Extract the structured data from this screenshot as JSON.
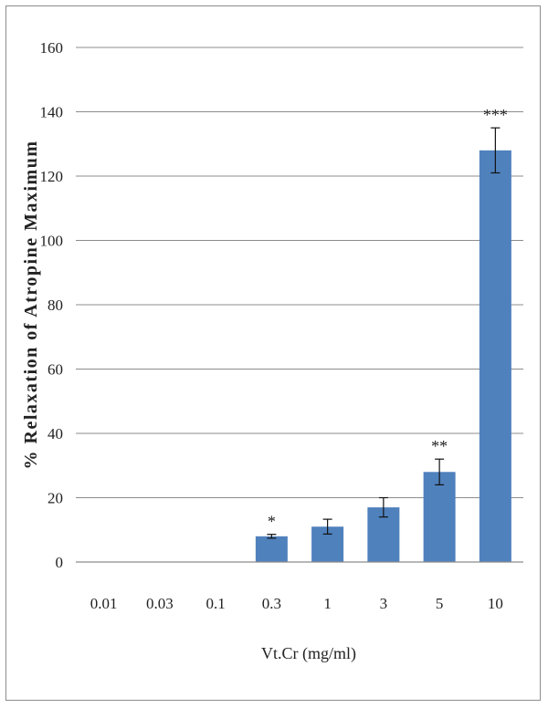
{
  "chart_data": {
    "type": "bar",
    "title": "",
    "xlabel": "Vt.Cr (mg/ml)",
    "ylabel": "% Relaxation of Atropine Maximum",
    "categories": [
      "0.01",
      "0.03",
      "0.1",
      "0.3",
      "1",
      "3",
      "5",
      "10"
    ],
    "values": [
      0,
      0,
      0,
      8,
      11,
      17,
      28,
      128
    ],
    "errors": [
      0,
      0,
      0,
      0.6,
      2.3,
      3.0,
      4.0,
      7.0
    ],
    "annotations": [
      "",
      "",
      "",
      "*",
      "",
      "",
      "**",
      "***"
    ],
    "ylim": [
      0,
      160
    ],
    "yticks": [
      0,
      20,
      40,
      60,
      80,
      100,
      120,
      140,
      160
    ],
    "grid": true,
    "legend": "none",
    "bar_color": "#4f81bd"
  }
}
